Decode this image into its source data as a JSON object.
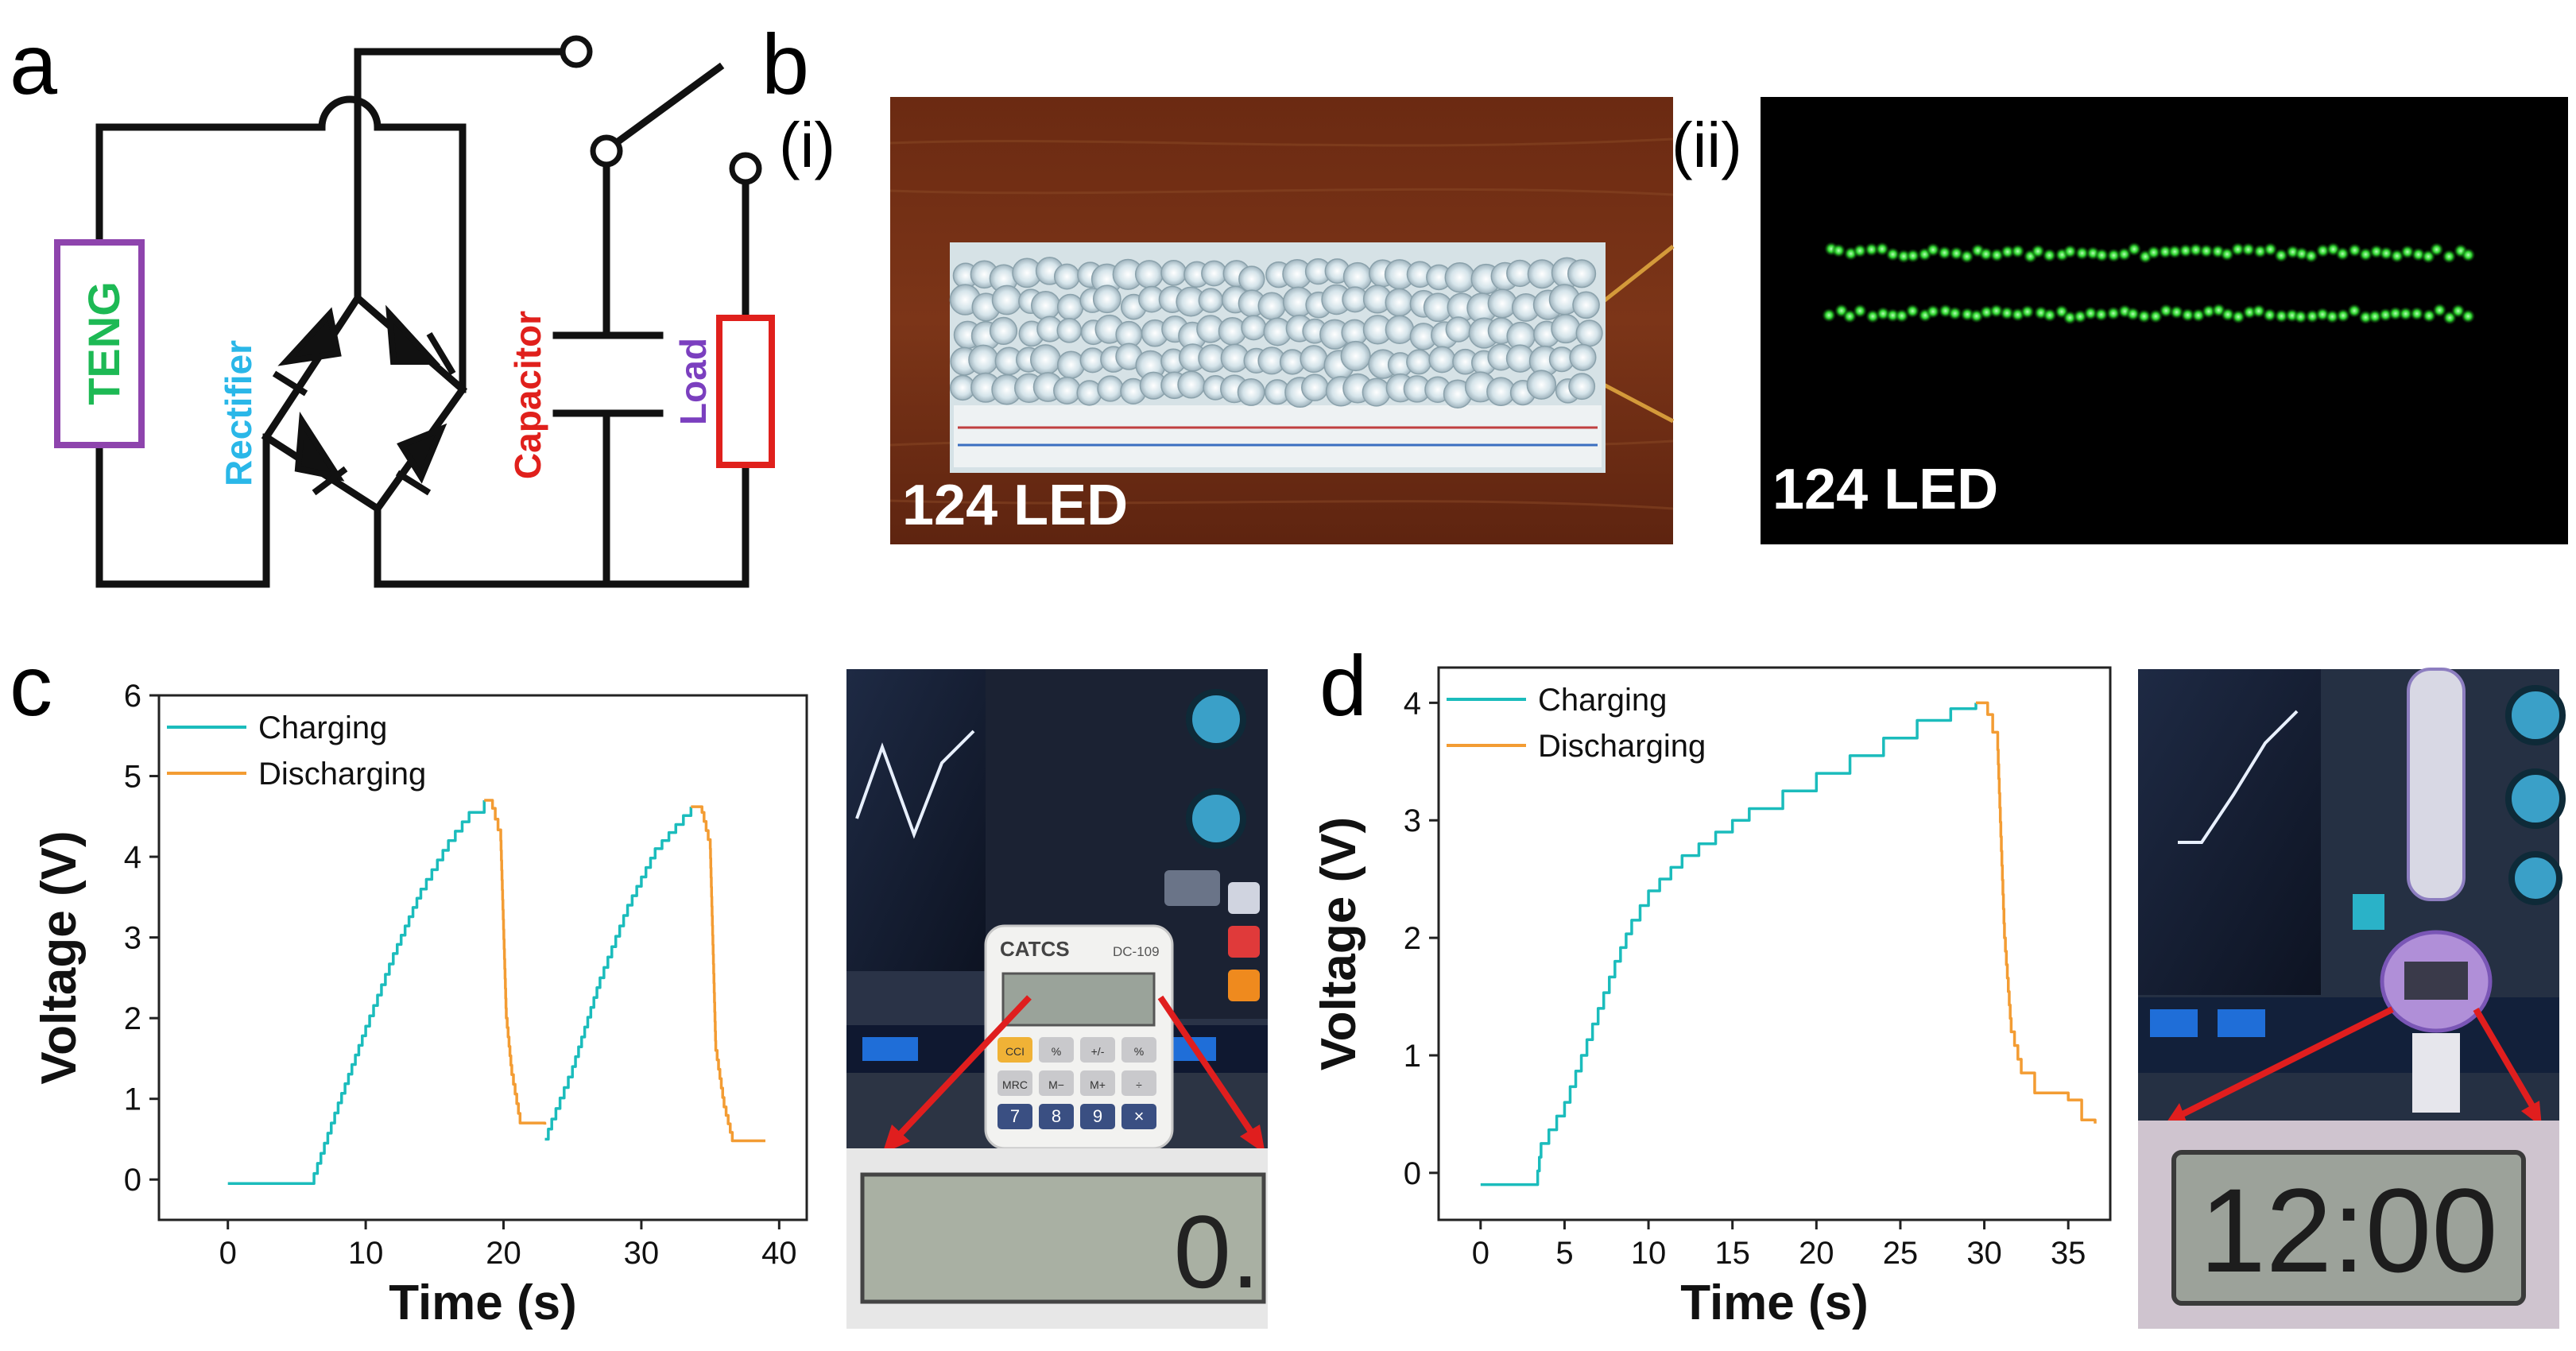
{
  "panels": {
    "a": {
      "letter": "a",
      "teng": "TENG",
      "rectifier": "Rectifier",
      "capacitor": "Capacitor",
      "load": "Load",
      "colors": {
        "teng_box": "#8e44ad",
        "teng_text": "#1db954",
        "rectifier": "#2ab7e8",
        "capacitor": "#e0201c",
        "load_box": "#e0201c",
        "load_text": "#7b3fbf"
      }
    },
    "b": {
      "letter": "b",
      "photo1": {
        "tag": "(i)",
        "caption": "124 LED"
      },
      "photo2": {
        "tag": "(ii)",
        "caption": "124 LED"
      }
    },
    "c": {
      "letter": "c",
      "calculator": {
        "brand": "CATCS",
        "model": "DC-109",
        "display": "0.",
        "keys": [
          "CCI",
          "%",
          "+/-",
          "%",
          "MRC",
          "M−",
          "M+",
          "÷",
          "7",
          "8",
          "9",
          "×"
        ]
      }
    },
    "d": {
      "letter": "d",
      "watch": {
        "display": "12:00"
      }
    }
  },
  "chart_data": [
    {
      "id": "c",
      "type": "line",
      "xlabel": "Time (s)",
      "ylabel": "Voltage (V)",
      "xlim": [
        -5,
        42
      ],
      "ylim": [
        -0.5,
        6
      ],
      "xticks": [
        0,
        10,
        20,
        30,
        40
      ],
      "yticks": [
        0,
        1,
        2,
        3,
        4,
        5,
        6
      ],
      "legend": "top-left",
      "series": [
        {
          "name": "Charging",
          "color": "#1bbcbc",
          "segments": [
            [
              [
                0,
                -0.05
              ],
              [
                6,
                -0.05
              ],
              [
                7,
                0.45
              ],
              [
                8,
                0.95
              ],
              [
                10,
                1.9
              ],
              [
                12,
                2.8
              ],
              [
                14,
                3.6
              ],
              [
                16,
                4.2
              ],
              [
                17.5,
                4.55
              ],
              [
                18.6,
                4.7
              ]
            ],
            [
              [
                23,
                0.5
              ],
              [
                23.5,
                0.75
              ],
              [
                25,
                1.4
              ],
              [
                27,
                2.5
              ],
              [
                29,
                3.4
              ],
              [
                31,
                4.1
              ],
              [
                32.5,
                4.4
              ],
              [
                33.6,
                4.62
              ]
            ]
          ]
        },
        {
          "name": "Discharging",
          "color": "#f39c33",
          "segments": [
            [
              [
                18.6,
                4.7
              ],
              [
                19.2,
                4.6
              ],
              [
                19.8,
                4.2
              ],
              [
                20.2,
                2.0
              ],
              [
                20.6,
                1.3
              ],
              [
                21.2,
                0.7
              ],
              [
                23,
                0.68
              ]
            ],
            [
              [
                33.6,
                4.62
              ],
              [
                34.4,
                4.55
              ],
              [
                35.0,
                4.1
              ],
              [
                35.4,
                1.6
              ],
              [
                36.0,
                0.9
              ],
              [
                36.6,
                0.48
              ],
              [
                39,
                0.48
              ]
            ]
          ]
        }
      ]
    },
    {
      "id": "d",
      "type": "line",
      "xlabel": "Time (s)",
      "ylabel": "Voltage (V)",
      "xlim": [
        -2.5,
        37.5
      ],
      "ylim": [
        -0.4,
        4.3
      ],
      "xticks": [
        0,
        5,
        10,
        15,
        20,
        25,
        30,
        35
      ],
      "yticks": [
        0,
        1,
        2,
        3,
        4
      ],
      "legend": "top-left",
      "series": [
        {
          "name": "Charging",
          "color": "#1bbcbc",
          "segments": [
            [
              [
                0,
                -0.1
              ],
              [
                3.3,
                -0.1
              ],
              [
                3.6,
                0.25
              ],
              [
                5,
                0.6
              ],
              [
                6,
                1.0
              ],
              [
                7,
                1.4
              ],
              [
                8,
                1.8
              ],
              [
                9,
                2.15
              ],
              [
                10,
                2.4
              ],
              [
                12,
                2.7
              ],
              [
                14,
                2.9
              ],
              [
                16,
                3.1
              ],
              [
                18,
                3.25
              ],
              [
                20,
                3.4
              ],
              [
                22,
                3.55
              ],
              [
                24,
                3.7
              ],
              [
                26,
                3.85
              ],
              [
                28,
                3.95
              ],
              [
                29.5,
                4.0
              ]
            ]
          ]
        },
        {
          "name": "Discharging",
          "color": "#f39c33",
          "segments": [
            [
              [
                29.5,
                4.0
              ],
              [
                30.2,
                3.9
              ],
              [
                30.8,
                3.6
              ],
              [
                31.2,
                2.0
              ],
              [
                31.6,
                1.2
              ],
              [
                32.2,
                0.85
              ],
              [
                33,
                0.68
              ],
              [
                35,
                0.62
              ],
              [
                35.8,
                0.45
              ],
              [
                36.6,
                0.42
              ]
            ]
          ]
        }
      ]
    }
  ]
}
